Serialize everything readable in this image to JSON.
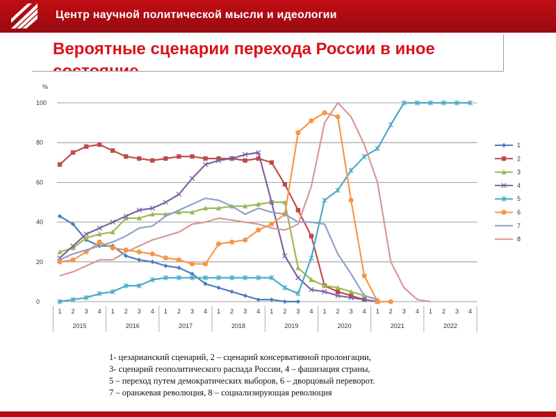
{
  "header": {
    "org_name": "Центр научной политической мысли и идеологии"
  },
  "slide": {
    "title": "Вероятные сценарии перехода России в иное состояние"
  },
  "caption": {
    "lines": [
      "1- цезарианский сценарий, 2 – сценарий консервативной пролонгации,",
      "3- сценарий геополитического распада России, 4 – фашизация страны,",
      "5 – переход путем демократических выборов, 6 – дворцовый переворот.",
      "7 – оранжевая революция, 8 – социализирующая революция"
    ]
  },
  "colors": {
    "header": "#b70c12",
    "title": "#d9121b"
  },
  "chart_data": {
    "type": "line",
    "ylabel": "%",
    "ylim": [
      0,
      100
    ],
    "yticks": [
      0,
      20,
      40,
      60,
      80,
      100
    ],
    "grid": "horizontal",
    "legend_position": "right",
    "quarters": [
      "1",
      "2",
      "3",
      "4",
      "1",
      "2",
      "3",
      "4",
      "1",
      "2",
      "3",
      "4",
      "1",
      "2",
      "3",
      "4",
      "1",
      "2",
      "3",
      "4",
      "1",
      "2",
      "3",
      "4",
      "1",
      "2",
      "3",
      "4",
      "1",
      "2",
      "3",
      "4"
    ],
    "years": [
      "2015",
      "2016",
      "2017",
      "2018",
      "2019",
      "2020",
      "2021",
      "2022"
    ],
    "series": [
      {
        "name": "1",
        "color": "#4a7ebb",
        "marker": "diamond",
        "x": [
          0,
          1,
          2,
          3,
          4,
          5,
          6,
          7,
          8,
          9,
          10,
          11,
          12,
          13,
          14,
          15,
          16,
          17,
          18
        ],
        "values": [
          43,
          39,
          31,
          28,
          28,
          23,
          21,
          20,
          18,
          17,
          14,
          9,
          7,
          5,
          3,
          1,
          1,
          0,
          0
        ]
      },
      {
        "name": "2",
        "color": "#be4b48",
        "marker": "square",
        "x": [
          0,
          1,
          2,
          3,
          4,
          5,
          6,
          7,
          8,
          9,
          10,
          11,
          12,
          13,
          14,
          15,
          16,
          17,
          18,
          19,
          20,
          21,
          22,
          23
        ],
        "values": [
          69,
          75,
          78,
          79,
          76,
          73,
          72,
          71,
          72,
          73,
          73,
          72,
          72,
          72,
          71,
          72,
          70,
          59,
          46,
          33,
          8,
          5,
          3,
          1
        ]
      },
      {
        "name": "3",
        "color": "#98b954",
        "marker": "triangle",
        "x": [
          0,
          1,
          2,
          3,
          4,
          5,
          6,
          7,
          8,
          9,
          10,
          11,
          12,
          13,
          14,
          15,
          16,
          17,
          18,
          19,
          20,
          21,
          22,
          23,
          24
        ],
        "values": [
          25,
          27,
          32,
          34,
          35,
          42,
          42,
          44,
          44,
          45,
          45,
          47,
          47,
          48,
          48,
          49,
          50,
          50,
          17,
          11,
          8,
          7,
          5,
          3,
          1
        ]
      },
      {
        "name": "4",
        "color": "#7d60a0",
        "marker": "x",
        "x": [
          0,
          1,
          2,
          3,
          4,
          5,
          6,
          7,
          8,
          9,
          10,
          11,
          12,
          13,
          14,
          15,
          16,
          17,
          18,
          19,
          20,
          21,
          22,
          23,
          24
        ],
        "values": [
          22,
          28,
          34,
          37,
          40,
          43,
          46,
          47,
          50,
          54,
          62,
          69,
          71,
          72,
          74,
          75,
          50,
          23,
          12,
          6,
          5,
          3,
          2,
          1,
          0
        ]
      },
      {
        "name": "5",
        "color": "#46aac5",
        "marker": "star",
        "x": [
          0,
          1,
          2,
          3,
          4,
          5,
          6,
          7,
          8,
          9,
          10,
          11,
          12,
          13,
          14,
          15,
          16,
          17,
          18,
          19,
          20,
          21,
          22,
          23,
          24,
          25,
          26,
          27,
          28,
          29,
          30,
          31
        ],
        "values": [
          0,
          1,
          2,
          4,
          5,
          8,
          8,
          11,
          12,
          12,
          12,
          12,
          12,
          12,
          12,
          12,
          12,
          7,
          4,
          22,
          51,
          56,
          66,
          73,
          77,
          89,
          100,
          100,
          100,
          100,
          100,
          100
        ]
      },
      {
        "name": "6",
        "color": "#f79646",
        "marker": "circle",
        "x": [
          0,
          1,
          2,
          3,
          4,
          5,
          6,
          7,
          8,
          9,
          10,
          11,
          12,
          13,
          14,
          15,
          16,
          17,
          18,
          19,
          20,
          21,
          22,
          23,
          24,
          25
        ],
        "values": [
          20,
          21,
          25,
          30,
          27,
          26,
          25,
          24,
          22,
          21,
          19,
          19,
          29,
          30,
          31,
          36,
          39,
          44,
          85,
          91,
          95,
          93,
          51,
          13,
          0,
          0
        ]
      },
      {
        "name": "7",
        "color": "#8ea0c8",
        "marker": "line",
        "x": [
          0,
          1,
          2,
          3,
          4,
          5,
          6,
          7,
          8,
          9,
          10,
          11,
          12,
          13,
          14,
          15,
          16,
          17,
          18,
          19,
          20,
          21,
          22,
          23,
          24
        ],
        "values": [
          21,
          24,
          26,
          28,
          30,
          33,
          37,
          38,
          43,
          46,
          49,
          52,
          51,
          48,
          44,
          47,
          45,
          44,
          40,
          40,
          39,
          24,
          14,
          3,
          1
        ]
      },
      {
        "name": "8",
        "color": "#d99795",
        "marker": "line",
        "x": [
          0,
          1,
          2,
          3,
          4,
          5,
          6,
          7,
          8,
          9,
          10,
          11,
          12,
          13,
          14,
          15,
          16,
          17,
          18,
          19,
          20,
          21,
          22,
          23,
          24,
          25,
          26,
          27,
          28
        ],
        "values": [
          13,
          15,
          18,
          21,
          21,
          25,
          28,
          31,
          33,
          35,
          39,
          40,
          42,
          41,
          40,
          39,
          37,
          36,
          39,
          58,
          90,
          100,
          93,
          79,
          60,
          20,
          7,
          1,
          0
        ]
      }
    ]
  }
}
